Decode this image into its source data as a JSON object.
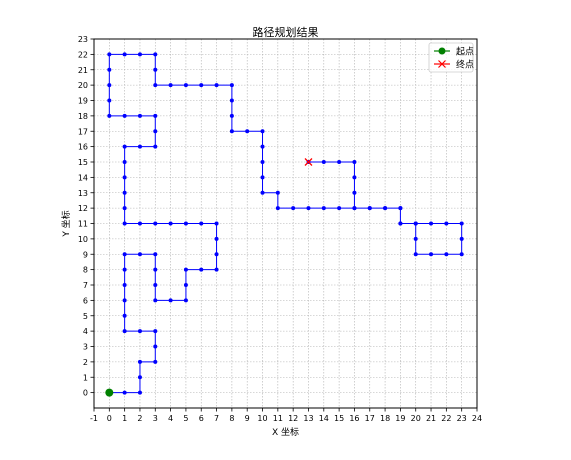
{
  "chart_data": {
    "type": "line",
    "title": "路径规划结果",
    "xlabel": "X 坐标",
    "ylabel": "Y 坐标",
    "xlim": [
      -1,
      24
    ],
    "ylim": [
      -1,
      23
    ],
    "x_ticks": [
      -1,
      0,
      1,
      2,
      3,
      4,
      5,
      6,
      7,
      8,
      9,
      10,
      11,
      12,
      13,
      14,
      15,
      16,
      17,
      18,
      19,
      20,
      21,
      22,
      23,
      24
    ],
    "y_ticks": [
      0,
      1,
      2,
      3,
      4,
      5,
      6,
      7,
      8,
      9,
      10,
      11,
      12,
      13,
      14,
      15,
      16,
      17,
      18,
      19,
      20,
      21,
      22,
      23
    ],
    "grid": true,
    "grid_style": "dotted",
    "legend_position": "top-right",
    "legend": [
      {
        "label": "起点",
        "color": "#008000",
        "marker": "circle"
      },
      {
        "label": "终点",
        "color": "#ff0000",
        "marker": "x"
      }
    ],
    "series": [
      {
        "color": "#0000ff",
        "marker": "circle",
        "points": [
          [
            0,
            0
          ],
          [
            1,
            0
          ],
          [
            2,
            0
          ],
          [
            2,
            1
          ],
          [
            2,
            2
          ],
          [
            3,
            2
          ],
          [
            3,
            3
          ],
          [
            3,
            4
          ],
          [
            2,
            4
          ],
          [
            1,
            4
          ],
          [
            1,
            5
          ],
          [
            1,
            6
          ],
          [
            1,
            7
          ],
          [
            1,
            8
          ],
          [
            1,
            9
          ],
          [
            2,
            9
          ],
          [
            3,
            9
          ],
          [
            3,
            8
          ],
          [
            3,
            7
          ],
          [
            3,
            6
          ],
          [
            4,
            6
          ],
          [
            5,
            6
          ],
          [
            5,
            7
          ],
          [
            5,
            8
          ],
          [
            6,
            8
          ],
          [
            7,
            8
          ],
          [
            7,
            9
          ],
          [
            7,
            10
          ],
          [
            7,
            11
          ],
          [
            6,
            11
          ],
          [
            5,
            11
          ],
          [
            4,
            11
          ],
          [
            3,
            11
          ],
          [
            2,
            11
          ],
          [
            1,
            11
          ],
          [
            1,
            12
          ],
          [
            1,
            13
          ],
          [
            1,
            14
          ],
          [
            1,
            15
          ],
          [
            1,
            16
          ],
          [
            2,
            16
          ],
          [
            3,
            16
          ],
          [
            3,
            17
          ],
          [
            3,
            18
          ],
          [
            2,
            18
          ],
          [
            1,
            18
          ],
          [
            0,
            18
          ],
          [
            0,
            19
          ],
          [
            0,
            20
          ],
          [
            0,
            21
          ],
          [
            0,
            22
          ],
          [
            1,
            22
          ],
          [
            2,
            22
          ],
          [
            3,
            22
          ],
          [
            3,
            21
          ],
          [
            3,
            20
          ],
          [
            4,
            20
          ],
          [
            5,
            20
          ],
          [
            6,
            20
          ],
          [
            7,
            20
          ],
          [
            8,
            20
          ],
          [
            8,
            19
          ],
          [
            8,
            18
          ],
          [
            8,
            17
          ],
          [
            9,
            17
          ],
          [
            10,
            17
          ],
          [
            10,
            16
          ],
          [
            10,
            15
          ],
          [
            10,
            14
          ],
          [
            10,
            13
          ],
          [
            11,
            13
          ],
          [
            11,
            12
          ],
          [
            12,
            12
          ],
          [
            13,
            12
          ],
          [
            14,
            12
          ],
          [
            15,
            12
          ],
          [
            16,
            12
          ],
          [
            17,
            12
          ],
          [
            18,
            12
          ],
          [
            19,
            12
          ],
          [
            19,
            11
          ],
          [
            20,
            11
          ],
          [
            21,
            11
          ],
          [
            22,
            11
          ],
          [
            23,
            11
          ],
          [
            23,
            10
          ],
          [
            23,
            9
          ],
          [
            22,
            9
          ],
          [
            21,
            9
          ],
          [
            20,
            9
          ],
          [
            20,
            10
          ],
          [
            20,
            11
          ],
          [
            19,
            11
          ],
          [
            19,
            12
          ],
          [
            18,
            12
          ],
          [
            17,
            12
          ],
          [
            16,
            12
          ],
          [
            16,
            13
          ],
          [
            16,
            14
          ],
          [
            16,
            15
          ],
          [
            15,
            15
          ],
          [
            14,
            15
          ],
          [
            13,
            15
          ]
        ]
      }
    ],
    "start": [
      0,
      0
    ],
    "end": [
      13,
      15
    ]
  }
}
